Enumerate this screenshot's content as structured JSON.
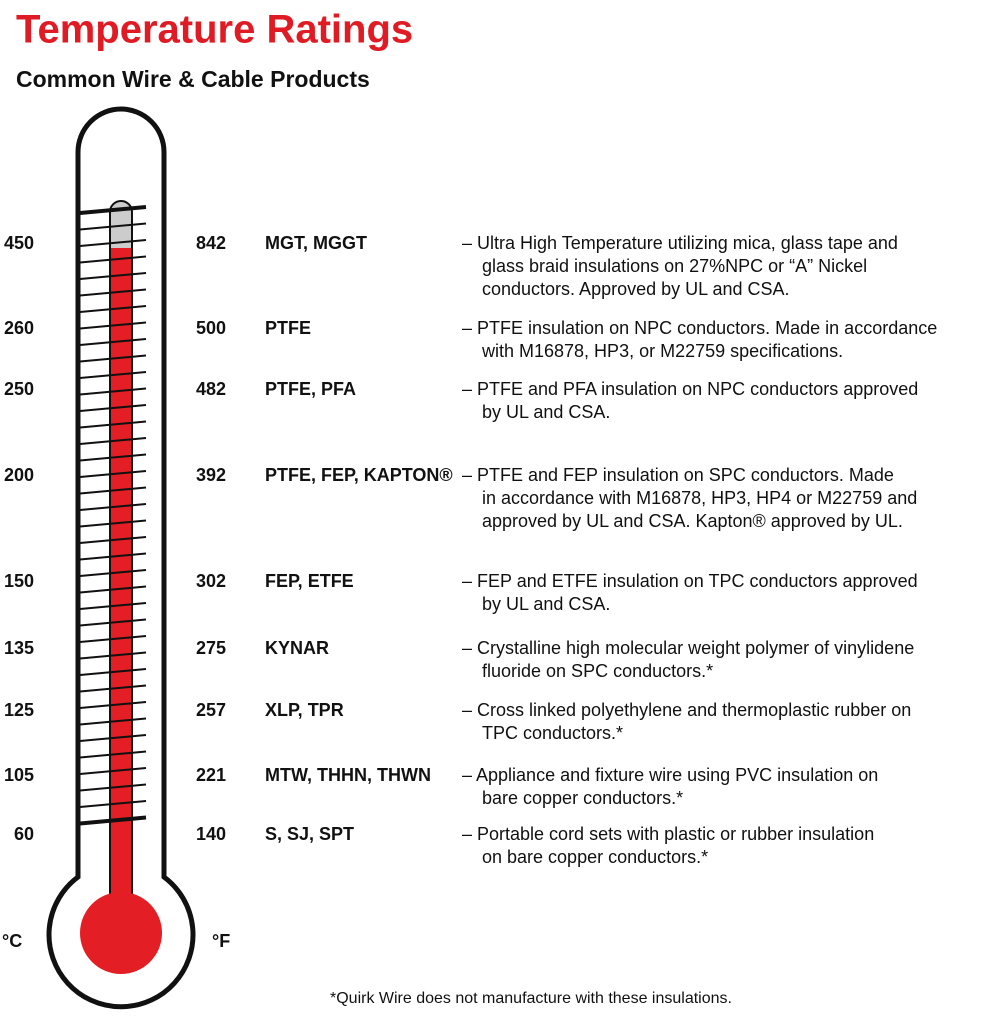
{
  "header": {
    "title": "Temperature Ratings",
    "subtitle": "Common Wire & Cable Products"
  },
  "units": {
    "celsius": "°C",
    "fahrenheit": "°F"
  },
  "rows": [
    {
      "c": "450",
      "f": "842",
      "name": "MGT, MGGT",
      "desc": [
        "– Ultra High Temperature utilizing mica, glass tape and",
        "glass braid insulations on 27%NPC or “A” Nickel",
        "conductors. Approved by UL and CSA."
      ]
    },
    {
      "c": "260",
      "f": "500",
      "name": "PTFE",
      "desc": [
        "– PTFE insulation on NPC conductors. Made in accordance",
        "with M16878, HP3, or M22759 specifications."
      ]
    },
    {
      "c": "250",
      "f": "482",
      "name": "PTFE, PFA",
      "desc": [
        "– PTFE and PFA insulation on NPC conductors approved",
        "by UL and CSA."
      ]
    },
    {
      "c": "200",
      "f": "392",
      "name": "PTFE, FEP, KAPTON®",
      "desc": [
        "– PTFE and FEP insulation on SPC conductors. Made",
        "in accordance with M16878, HP3, HP4 or M22759 and",
        "approved by UL and CSA. Kapton® approved by UL."
      ]
    },
    {
      "c": "150",
      "f": "302",
      "name": "FEP, ETFE",
      "desc": [
        "– FEP and ETFE insulation on TPC conductors approved",
        "by UL and CSA."
      ]
    },
    {
      "c": "135",
      "f": "275",
      "name": "KYNAR",
      "desc": [
        "– Crystalline high molecular weight polymer of vinylidene",
        "fluoride on SPC conductors.*"
      ]
    },
    {
      "c": "125",
      "f": "257",
      "name": "XLP, TPR",
      "desc": [
        "– Cross linked polyethylene and thermoplastic rubber on",
        "TPC conductors.*"
      ]
    },
    {
      "c": "105",
      "f": "221",
      "name": "MTW, THHN, THWN",
      "desc": [
        "– Appliance and fixture wire using PVC insulation on",
        "bare copper conductors.*"
      ]
    },
    {
      "c": "60",
      "f": "140",
      "name": "S, SJ, SPT",
      "desc": [
        "– Portable cord sets with plastic or rubber insulation",
        "on bare copper conductors.*"
      ]
    }
  ],
  "footnote": "*Quirk Wire does not manufacture with these insulations."
}
